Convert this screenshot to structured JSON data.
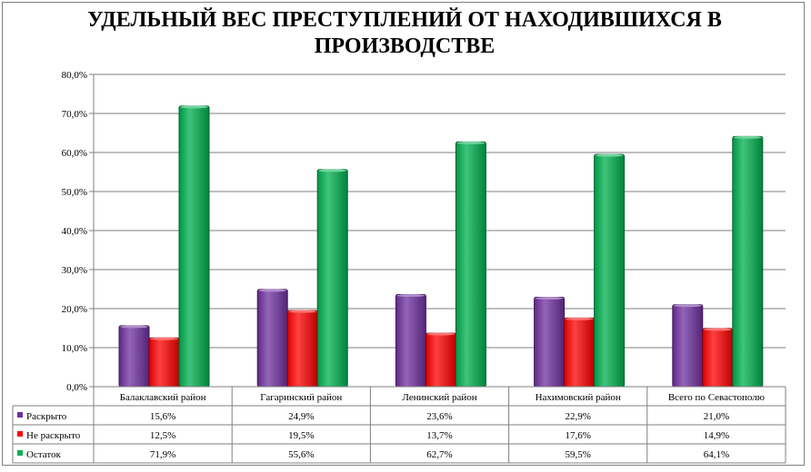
{
  "chart_data": {
    "type": "bar",
    "title": "УДЕЛЬНЫЙ ВЕС ПРЕСТУПЛЕНИЙ ОТ НАХОДИВШИХСЯ В ПРОИЗВОДСТВЕ",
    "categories": [
      "Балаклавский  район",
      "Гагаринский район",
      "Ленинский район",
      "Нахимовский  район",
      "Всего по Севастополю"
    ],
    "series": [
      {
        "name": "Раскрыто",
        "color": "#7030a0",
        "values": [
          15.6,
          24.9,
          23.6,
          22.9,
          21.0
        ],
        "labels": [
          "15,6%",
          "24,9%",
          "23,6%",
          "22,9%",
          "21,0%"
        ]
      },
      {
        "name": "Не раскрыто",
        "color": "#ff0000",
        "values": [
          12.5,
          19.5,
          13.7,
          17.6,
          14.9
        ],
        "labels": [
          "12,5%",
          "19,5%",
          "13,7%",
          "17,6%",
          "14,9%"
        ]
      },
      {
        "name": "Остаток",
        "color": "#00b050",
        "values": [
          71.9,
          55.6,
          62.7,
          59.5,
          64.1
        ],
        "labels": [
          "71,9%",
          "55,6%",
          "62,7%",
          "59,5%",
          "64,1%"
        ]
      }
    ],
    "yticks": [
      "0,0%",
      "10,0%",
      "20,0%",
      "30,0%",
      "40,0%",
      "50,0%",
      "60,0%",
      "70,0%",
      "80,0%"
    ],
    "ylim": [
      0,
      80
    ],
    "grid": true,
    "legend": "data-table"
  }
}
